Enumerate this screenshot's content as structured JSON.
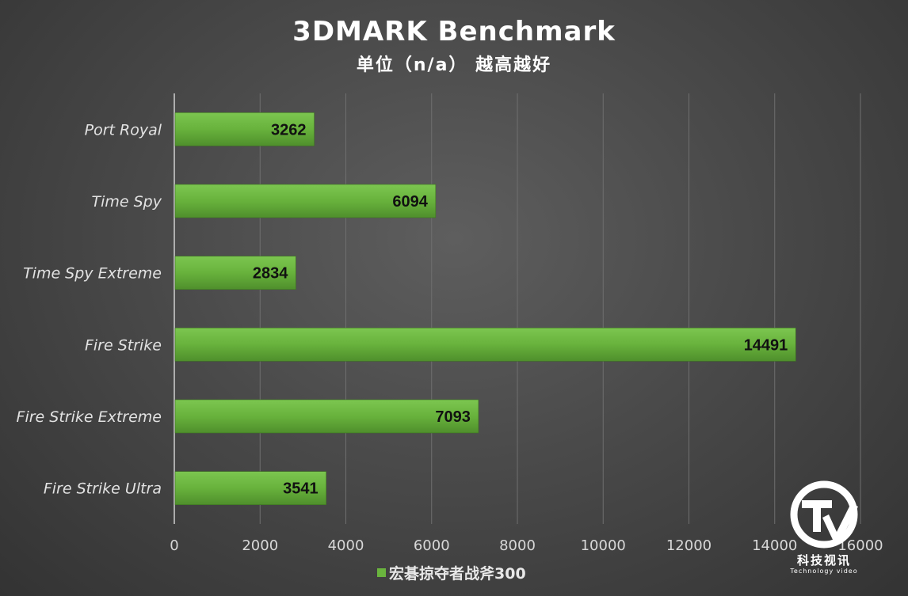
{
  "chart_data": {
    "type": "bar",
    "orientation": "horizontal",
    "title": "3DMARK Benchmark",
    "subtitle": "单位（n/a） 越高越好",
    "categories": [
      "Port Royal",
      "Time Spy",
      "Time Spy Extreme",
      "Fire Strike",
      "Fire Strike Extreme",
      "Fire Strike Ultra"
    ],
    "series": [
      {
        "name": "宏碁掠夺者战斧300",
        "values": [
          3262,
          6094,
          2834,
          14491,
          7093,
          3541
        ]
      }
    ],
    "xlim": [
      0,
      16000
    ],
    "x_ticks": [
      "0",
      "2000",
      "4000",
      "6000",
      "8000",
      "10000",
      "12000",
      "14000",
      "16000"
    ],
    "grid": true,
    "legend_position": "bottom",
    "bar_color": "#6ab43e"
  },
  "watermark": {
    "name": "科技视讯",
    "sub": "Technology video"
  }
}
